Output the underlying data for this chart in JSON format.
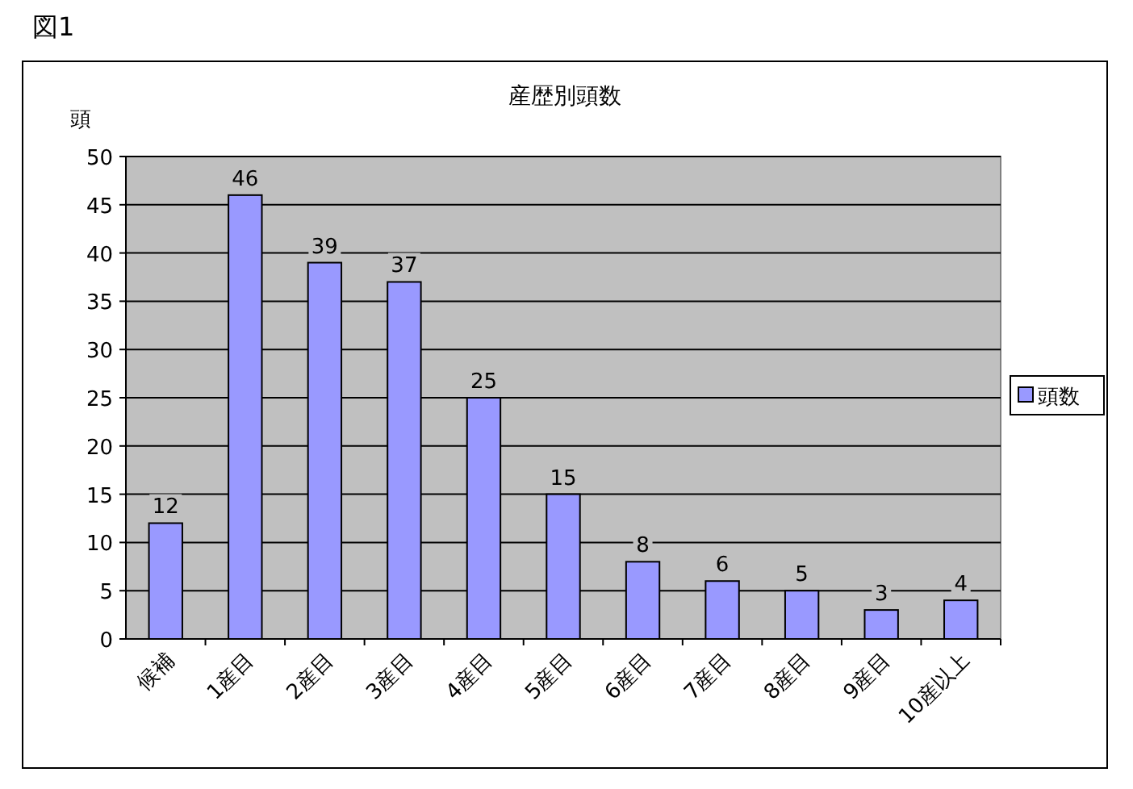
{
  "chart_data": {
    "type": "bar",
    "title": "産歴別頭数",
    "ylabel": "頭",
    "annotations": [
      "図1"
    ],
    "categories": [
      "候補",
      "1産目",
      "2産目",
      "3産目",
      "4産目",
      "5産目",
      "6産目",
      "7産目",
      "8産目",
      "9産目",
      "10産以上"
    ],
    "series": [
      {
        "name": "頭数",
        "color": "#9999ff",
        "values": [
          12,
          46,
          39,
          37,
          25,
          15,
          8,
          6,
          5,
          3,
          4
        ]
      }
    ],
    "ylim": [
      0,
      50
    ],
    "yticks": [
      0,
      5,
      10,
      15,
      20,
      25,
      30,
      35,
      40,
      45,
      50
    ],
    "grid": "y",
    "legend": "right",
    "data_labels": true
  }
}
